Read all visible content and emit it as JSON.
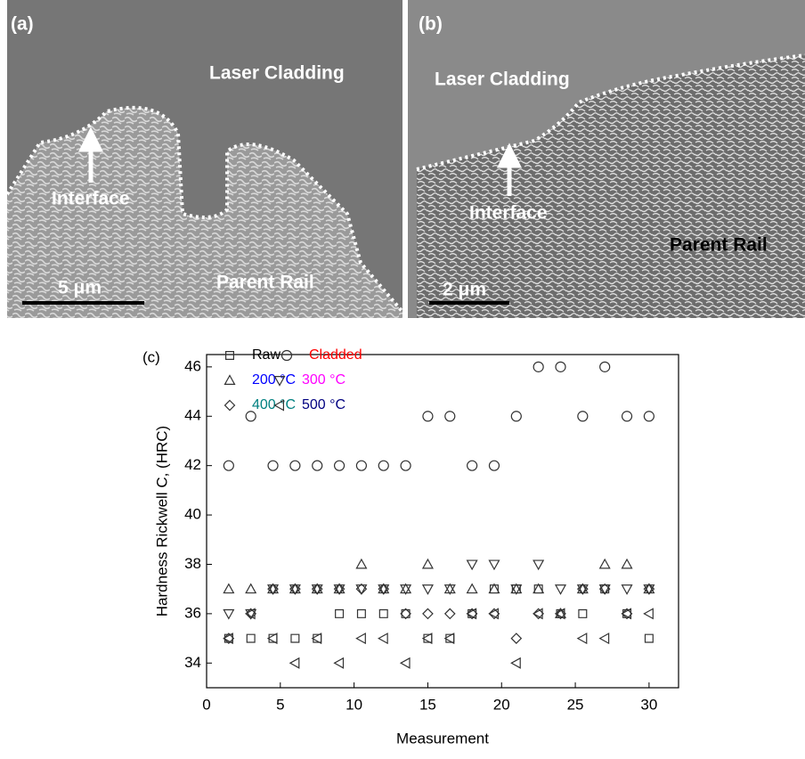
{
  "panels": [
    {
      "label": "(a)",
      "top_region": "Laser Cladding",
      "bottom_region": "Parent Rail",
      "interface": "Interface",
      "scale_bar": "5 μm"
    },
    {
      "label": "(b)",
      "top_region": "Laser Cladding",
      "bottom_region": "Parent Rail",
      "interface": "Interface",
      "scale_bar": "2 μm"
    }
  ],
  "chart_data": {
    "type": "scatter",
    "panel_label": "(c)",
    "x_label": "Measurement",
    "y_label": "Hardness Rickwell C, (HRC)",
    "x": [
      1.5,
      3,
      4.5,
      6,
      7.5,
      9,
      10.5,
      12,
      13.5,
      15,
      16.5,
      18,
      19.5,
      21,
      22.5,
      24,
      25.5,
      27,
      28.5,
      30
    ],
    "xlim": [
      0,
      32
    ],
    "xticks": [
      0,
      5,
      10,
      15,
      20,
      25,
      30
    ],
    "ylim": [
      33,
      46.5
    ],
    "yticks": [
      34,
      36,
      38,
      40,
      42,
      44,
      46
    ],
    "series": [
      {
        "name": "Raw",
        "color": "#000000",
        "marker": "square",
        "values": [
          35,
          35,
          35,
          35,
          35,
          36,
          36,
          36,
          36,
          35,
          35,
          36,
          37,
          37,
          37,
          36,
          36,
          37,
          36,
          35
        ]
      },
      {
        "name": "Cladded",
        "color": "#ff0000",
        "marker": "circle",
        "values": [
          42,
          44,
          42,
          42,
          42,
          42,
          42,
          42,
          42,
          44,
          44,
          42,
          42,
          44,
          46,
          46,
          44,
          46,
          44,
          44
        ]
      },
      {
        "name": "200 °C",
        "color": "#0000ff",
        "marker": "triangle-up",
        "values": [
          37,
          37,
          37,
          37,
          37,
          37,
          38,
          37,
          37,
          38,
          37,
          37,
          37,
          37,
          37,
          36,
          37,
          38,
          38,
          37
        ]
      },
      {
        "name": "300 °C",
        "color": "#ff00ff",
        "marker": "triangle-down",
        "values": [
          36,
          36,
          37,
          37,
          37,
          37,
          37,
          37,
          37,
          37,
          37,
          38,
          38,
          37,
          38,
          37,
          37,
          37,
          37,
          37
        ]
      },
      {
        "name": "400 °C",
        "color": "#008080",
        "marker": "diamond",
        "values": [
          35,
          36,
          37,
          37,
          37,
          37,
          37,
          37,
          36,
          36,
          36,
          36,
          36,
          35,
          36,
          36,
          37,
          37,
          36,
          37
        ]
      },
      {
        "name": "500 °C",
        "color": "#000080",
        "marker": "triangle-left",
        "values": [
          35,
          36,
          35,
          34,
          35,
          34,
          35,
          35,
          34,
          35,
          35,
          36,
          36,
          34,
          36,
          36,
          35,
          35,
          36,
          36
        ]
      }
    ]
  }
}
